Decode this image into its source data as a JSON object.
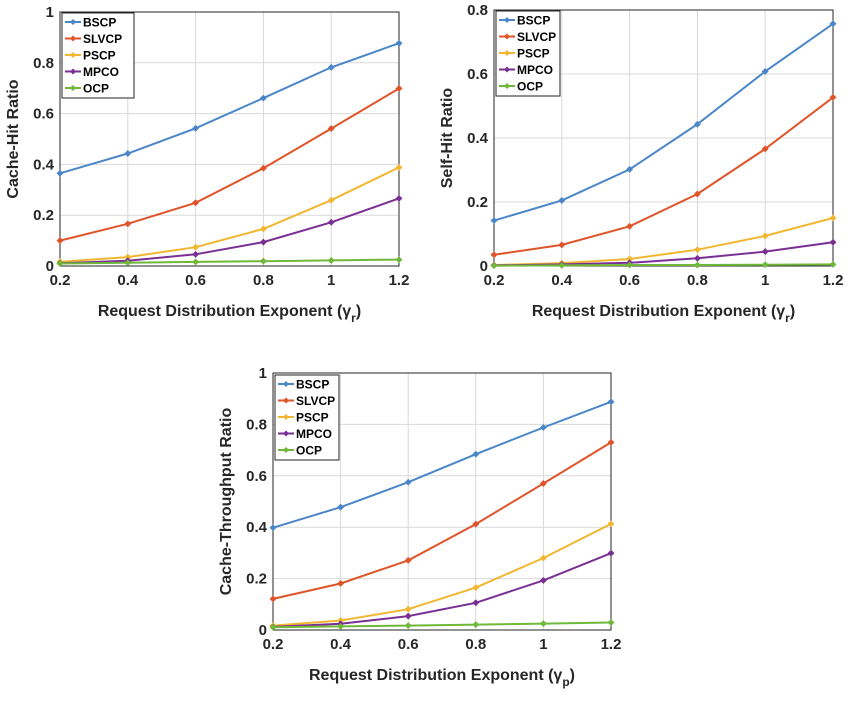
{
  "series_colors": {
    "BSCP": "#4a86c8",
    "SLVCP": "#e0542a",
    "PSCP": "#f2b731",
    "MPCO": "#7a2f93",
    "OCP": "#6fb83a"
  },
  "chart_data": [
    {
      "type": "line",
      "title": "",
      "xlabel": "Request Distribution Exponent (γ",
      "xlabel_sub": "r",
      "xlabel_close": ")",
      "ylabel": "Cache-Hit Ratio",
      "x": [
        0.2,
        0.4,
        0.6,
        0.8,
        1.0,
        1.2
      ],
      "xticks": [
        "0.2",
        "0.4",
        "0.6",
        "0.8",
        "1",
        "1.2"
      ],
      "xlim": [
        0.2,
        1.2
      ],
      "ylim": [
        0,
        1
      ],
      "yticks": [
        "0",
        "0.2",
        "0.4",
        "0.6",
        "0.8",
        "1"
      ],
      "yticks_values": [
        0,
        0.2,
        0.4,
        0.6,
        0.8,
        1
      ],
      "grid": true,
      "legend": "top-left",
      "series": [
        {
          "name": "BSCP",
          "values": [
            0.365,
            0.443,
            0.542,
            0.661,
            0.782,
            0.877
          ]
        },
        {
          "name": "SLVCP",
          "values": [
            0.1,
            0.166,
            0.249,
            0.385,
            0.541,
            0.699
          ]
        },
        {
          "name": "PSCP",
          "values": [
            0.017,
            0.035,
            0.074,
            0.146,
            0.259,
            0.388
          ]
        },
        {
          "name": "MPCO",
          "values": [
            0.011,
            0.021,
            0.046,
            0.094,
            0.172,
            0.266
          ]
        },
        {
          "name": "OCP",
          "values": [
            0.01,
            0.013,
            0.016,
            0.019,
            0.022,
            0.025
          ]
        }
      ]
    },
    {
      "type": "line",
      "title": "",
      "xlabel": "Request Distribution Exponent (γ",
      "xlabel_sub": "r",
      "xlabel_close": ")",
      "ylabel": "Self-Hit Ratio",
      "x": [
        0.2,
        0.4,
        0.6,
        0.8,
        1.0,
        1.2
      ],
      "xticks": [
        "0.2",
        "0.4",
        "0.6",
        "0.8",
        "1",
        "1.2"
      ],
      "xlim": [
        0.2,
        1.2
      ],
      "ylim": [
        0,
        0.8
      ],
      "yticks": [
        "0",
        "0.2",
        "0.4",
        "0.6",
        "0.8"
      ],
      "yticks_values": [
        0,
        0.2,
        0.4,
        0.6,
        0.8
      ],
      "grid": true,
      "legend": "top-left",
      "series": [
        {
          "name": "BSCP",
          "values": [
            0.142,
            0.205,
            0.302,
            0.443,
            0.608,
            0.757
          ]
        },
        {
          "name": "SLVCP",
          "values": [
            0.035,
            0.066,
            0.124,
            0.225,
            0.366,
            0.527
          ]
        },
        {
          "name": "PSCP",
          "values": [
            0.003,
            0.009,
            0.022,
            0.051,
            0.094,
            0.15
          ]
        },
        {
          "name": "MPCO",
          "values": [
            0.002,
            0.005,
            0.01,
            0.024,
            0.045,
            0.074
          ]
        },
        {
          "name": "OCP",
          "values": [
            0.001,
            0.002,
            0.003,
            0.003,
            0.004,
            0.005
          ]
        }
      ]
    },
    {
      "type": "line",
      "title": "",
      "xlabel": "Request Distribution Exponent (γ",
      "xlabel_sub": "p",
      "xlabel_close": ")",
      "ylabel": "Cache-Throughput Ratio",
      "x": [
        0.2,
        0.4,
        0.6,
        0.8,
        1.0,
        1.2
      ],
      "xticks": [
        "0.2",
        "0.4",
        "0.6",
        "0.8",
        "1",
        "1.2"
      ],
      "xlim": [
        0.2,
        1.2
      ],
      "ylim": [
        0,
        1
      ],
      "yticks": [
        "0",
        "0.2",
        "0.4",
        "0.6",
        "0.8",
        "1"
      ],
      "yticks_values": [
        0,
        0.2,
        0.4,
        0.6,
        0.8,
        1
      ],
      "grid": true,
      "legend": "top-left",
      "series": [
        {
          "name": "BSCP",
          "values": [
            0.398,
            0.478,
            0.575,
            0.684,
            0.788,
            0.888
          ]
        },
        {
          "name": "SLVCP",
          "values": [
            0.121,
            0.181,
            0.271,
            0.412,
            0.57,
            0.73
          ]
        },
        {
          "name": "PSCP",
          "values": [
            0.017,
            0.037,
            0.081,
            0.165,
            0.28,
            0.413
          ]
        },
        {
          "name": "MPCO",
          "values": [
            0.012,
            0.024,
            0.054,
            0.106,
            0.193,
            0.299
          ]
        },
        {
          "name": "OCP",
          "values": [
            0.011,
            0.014,
            0.017,
            0.021,
            0.025,
            0.029
          ]
        }
      ]
    }
  ]
}
